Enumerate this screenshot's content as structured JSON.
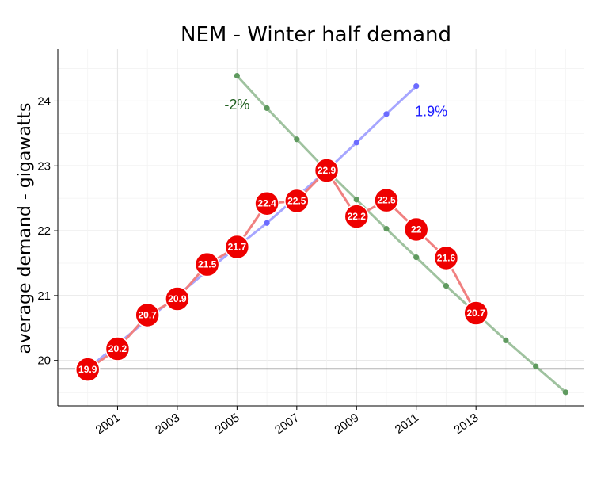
{
  "chart_data": {
    "type": "line",
    "title": "NEM - Winter half demand",
    "xlabel": "",
    "ylabel": "average demand - gigawatts",
    "xlim": [
      1999.0,
      2016.6
    ],
    "ylim": [
      19.3,
      24.8
    ],
    "x_ticks": [
      2001,
      2003,
      2005,
      2007,
      2009,
      2011,
      2013
    ],
    "y_ticks": [
      20,
      21,
      22,
      23,
      24
    ],
    "grid": true,
    "reference_line": 19.87,
    "colors": {
      "actual": "#ee0000",
      "actual_line": "#f08080",
      "rising": "#6b6bff",
      "falling": "#5f9a5f",
      "falling_label": "#1f5f1f",
      "reference": "#666666",
      "grid": "#ececec"
    },
    "series": [
      {
        "x": [
          2000,
          2001,
          2002,
          2003,
          2004,
          2005,
          2006,
          2007,
          2008,
          2009,
          2010,
          2011,
          2012,
          2013
        ],
        "values": [
          19.86,
          20.18,
          20.7,
          20.95,
          21.48,
          21.75,
          22.42,
          22.46,
          22.93,
          22.22,
          22.47,
          22.02,
          21.58,
          20.73
        ],
        "data_labels": [
          "19.9",
          "20.2",
          "20.7",
          "20.9",
          "21.5",
          "21.7",
          "22.4",
          "22.5",
          "22.9",
          "22.2",
          "22.5",
          "22",
          "21.6",
          "20.7"
        ]
      },
      {
        "x": [
          2000,
          2001,
          2002,
          2003,
          2004,
          2005,
          2006,
          2007,
          2008,
          2009,
          2010,
          2011
        ],
        "values": [
          19.87,
          20.25,
          20.63,
          21.0,
          21.38,
          21.75,
          22.12,
          22.52,
          22.93,
          23.36,
          23.8,
          24.23
        ]
      },
      {
        "x": [
          2005,
          2006,
          2007,
          2008,
          2009,
          2010,
          2011,
          2012,
          2013,
          2014,
          2015,
          2016
        ],
        "values": [
          24.39,
          23.89,
          23.41,
          22.93,
          22.48,
          22.03,
          21.59,
          21.15,
          20.73,
          20.31,
          19.91,
          19.51
        ]
      }
    ],
    "annotations": [
      {
        "text": "-2%",
        "x": 2005.0,
        "y": 23.87,
        "color": "#1f5f1f"
      },
      {
        "text": "1.9%",
        "x": 2011.5,
        "y": 23.77,
        "color": "#1a1aff"
      }
    ]
  }
}
